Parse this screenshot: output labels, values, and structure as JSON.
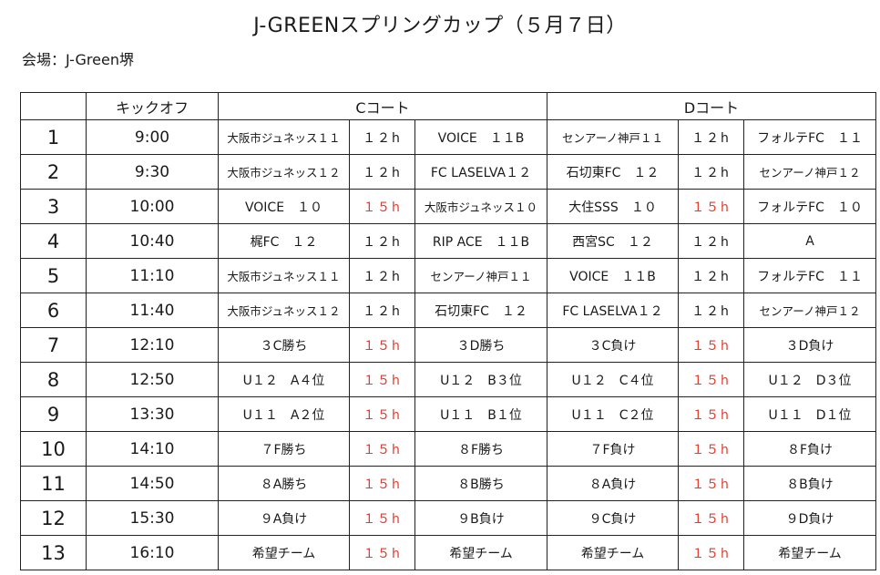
{
  "title": "J-GREENスプリングカップ（５月７日）",
  "venue": "会場：J-Green堺",
  "headers": {
    "no": "",
    "kickoff": "キックオフ",
    "court_c": "Cコート",
    "court_d": "Dコート"
  },
  "colors": {
    "text": "#1a1a1a",
    "red": "#e23b2e",
    "border": "#222222"
  },
  "rows": [
    {
      "no": "1",
      "time": "9:00",
      "c_home": "大阪市ジュネッス１１",
      "c_dur": "１２h",
      "c_dur_red": false,
      "c_away": "VOICE　１１B",
      "d_home": "センアーノ神戸１１",
      "d_dur": "１２h",
      "d_dur_red": false,
      "d_away": "フォルテFC　１１"
    },
    {
      "no": "2",
      "time": "9:30",
      "c_home": "大阪市ジュネッス１２",
      "c_dur": "１２h",
      "c_dur_red": false,
      "c_away": "FC LASELVA１２",
      "d_home": "石切東FC　１２",
      "d_dur": "１２h",
      "d_dur_red": false,
      "d_away": "センアーノ神戸１２"
    },
    {
      "no": "3",
      "time": "10:00",
      "c_home": "VOICE　１０",
      "c_dur": "１５h",
      "c_dur_red": true,
      "c_away": "大阪市ジュネッス１０",
      "d_home": "大住SSS　１０",
      "d_dur": "１５h",
      "d_dur_red": true,
      "d_away": "フォルテFC　１０"
    },
    {
      "no": "4",
      "time": "10:40",
      "c_home": "梶FC　１２",
      "c_dur": "１２h",
      "c_dur_red": false,
      "c_away": "RIP ACE　１１B",
      "d_home": "西宮SC　１２",
      "d_dur": "１２h",
      "d_dur_red": false,
      "d_away": "A"
    },
    {
      "no": "5",
      "time": "11:10",
      "c_home": "大阪市ジュネッス１１",
      "c_dur": "１２h",
      "c_dur_red": false,
      "c_away": "センアーノ神戸１１",
      "d_home": "VOICE　１１B",
      "d_dur": "１２h",
      "d_dur_red": false,
      "d_away": "フォルテFC　１１"
    },
    {
      "no": "6",
      "time": "11:40",
      "c_home": "大阪市ジュネッス１２",
      "c_dur": "１２h",
      "c_dur_red": false,
      "c_away": "石切東FC　１２",
      "d_home": "FC LASELVA１２",
      "d_dur": "１２h",
      "d_dur_red": false,
      "d_away": "センアーノ神戸１２"
    },
    {
      "no": "7",
      "time": "12:10",
      "c_home": "３C勝ち",
      "c_dur": "１５h",
      "c_dur_red": true,
      "c_away": "３D勝ち",
      "d_home": "３C負け",
      "d_dur": "１５h",
      "d_dur_red": true,
      "d_away": "３D負け"
    },
    {
      "no": "8",
      "time": "12:50",
      "c_home": "U１２　A４位",
      "c_dur": "１５h",
      "c_dur_red": true,
      "c_away": "U１２　B３位",
      "d_home": "U１２　C４位",
      "d_dur": "１５h",
      "d_dur_red": true,
      "d_away": "U１２　D３位"
    },
    {
      "no": "9",
      "time": "13:30",
      "c_home": "U１１　A２位",
      "c_dur": "１５h",
      "c_dur_red": true,
      "c_away": "U１１　B１位",
      "d_home": "U１１　C２位",
      "d_dur": "１５h",
      "d_dur_red": true,
      "d_away": "U１１　D１位"
    },
    {
      "no": "10",
      "time": "14:10",
      "c_home": "７F勝ち",
      "c_dur": "１５h",
      "c_dur_red": true,
      "c_away": "８F勝ち",
      "d_home": "７F負け",
      "d_dur": "１５h",
      "d_dur_red": true,
      "d_away": "８F負け"
    },
    {
      "no": "11",
      "time": "14:50",
      "c_home": "８A勝ち",
      "c_dur": "１５h",
      "c_dur_red": true,
      "c_away": "８B勝ち",
      "d_home": "８A負け",
      "d_dur": "１５h",
      "d_dur_red": true,
      "d_away": "８B負け"
    },
    {
      "no": "12",
      "time": "15:30",
      "c_home": "９A負け",
      "c_dur": "１５h",
      "c_dur_red": true,
      "c_away": "９B負け",
      "d_home": "９C負け",
      "d_dur": "１５h",
      "d_dur_red": true,
      "d_away": "９D負け"
    },
    {
      "no": "13",
      "time": "16:10",
      "c_home": "希望チーム",
      "c_dur": "１５h",
      "c_dur_red": true,
      "c_away": "希望チーム",
      "d_home": "希望チーム",
      "d_dur": "１５h",
      "d_dur_red": true,
      "d_away": "希望チーム"
    }
  ]
}
